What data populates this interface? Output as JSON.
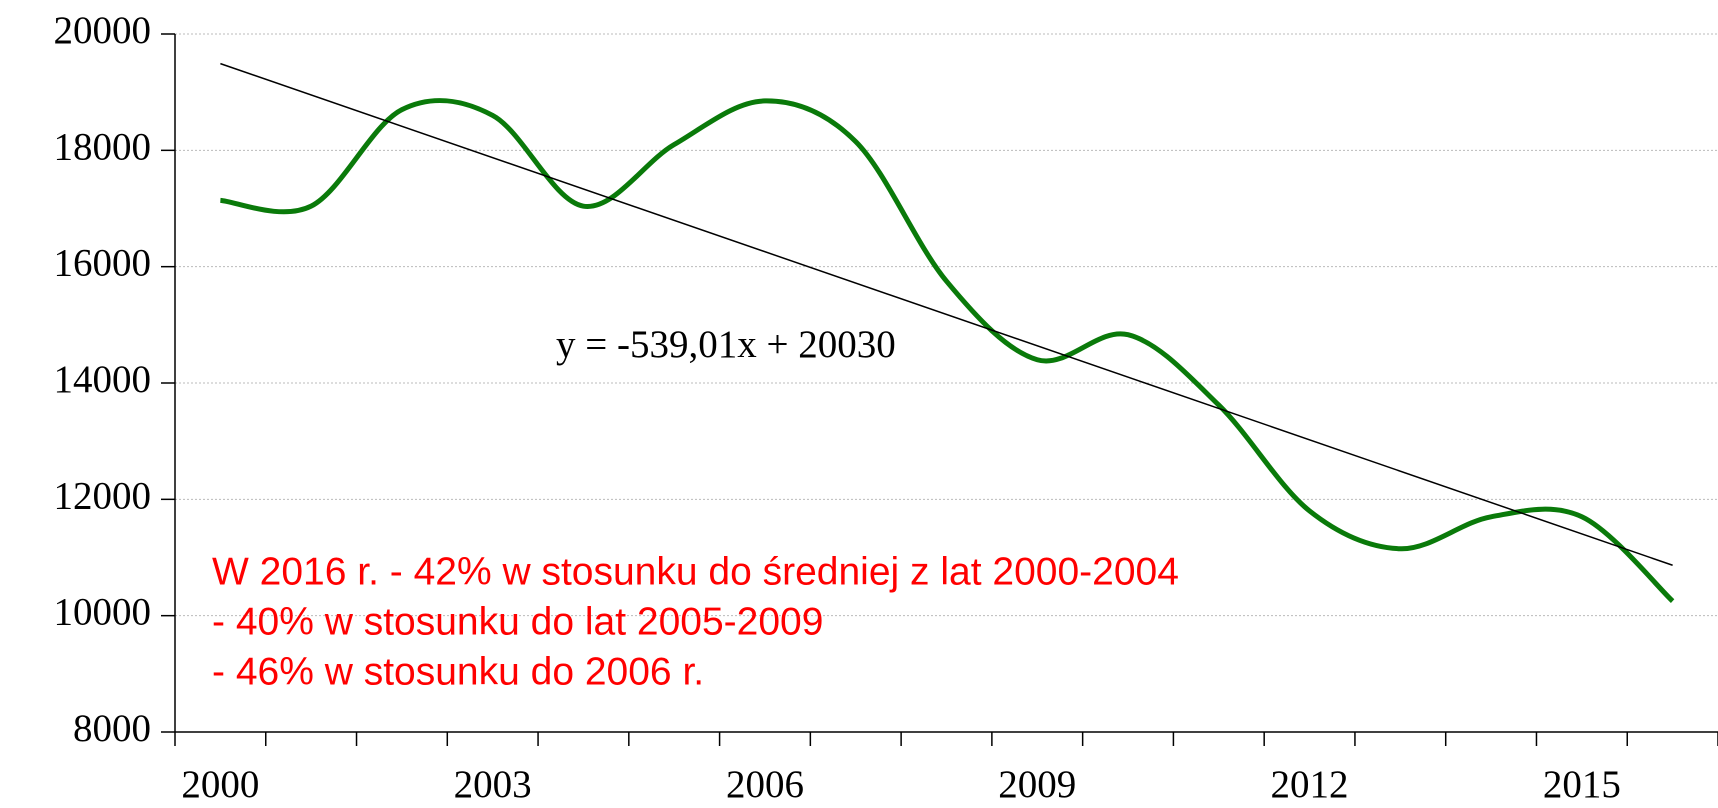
{
  "chart_data": {
    "type": "line",
    "categories": [
      "2000",
      null,
      null,
      "2003",
      null,
      null,
      "2006",
      null,
      null,
      "2009",
      null,
      null,
      "2012",
      null,
      null,
      "2015",
      null
    ],
    "series": [
      {
        "color": "#0a7a0a",
        "values": [
          17140,
          17040,
          18700,
          18600,
          17040,
          18100,
          18850,
          18150,
          15750,
          14400,
          14830,
          13620,
          11800,
          11150,
          11700,
          11700,
          10250
        ]
      }
    ],
    "ylim": [
      8000,
      20000
    ],
    "yticks": [
      8000,
      10000,
      12000,
      14000,
      16000,
      18000,
      20000
    ],
    "grid": true,
    "trendline": {
      "slope": -539.01,
      "intercept": 20030,
      "label": "y = -539,01x + 20030",
      "color": "#000000"
    },
    "annotation": [
      "W 2016 r. - 42% w stosunku do średniej z lat 2000-2004",
      "- 40% w stosunku do lat 2005-2009",
      "- 46% w stosunku do 2006 r."
    ],
    "annotation_color": "#ff0000"
  }
}
